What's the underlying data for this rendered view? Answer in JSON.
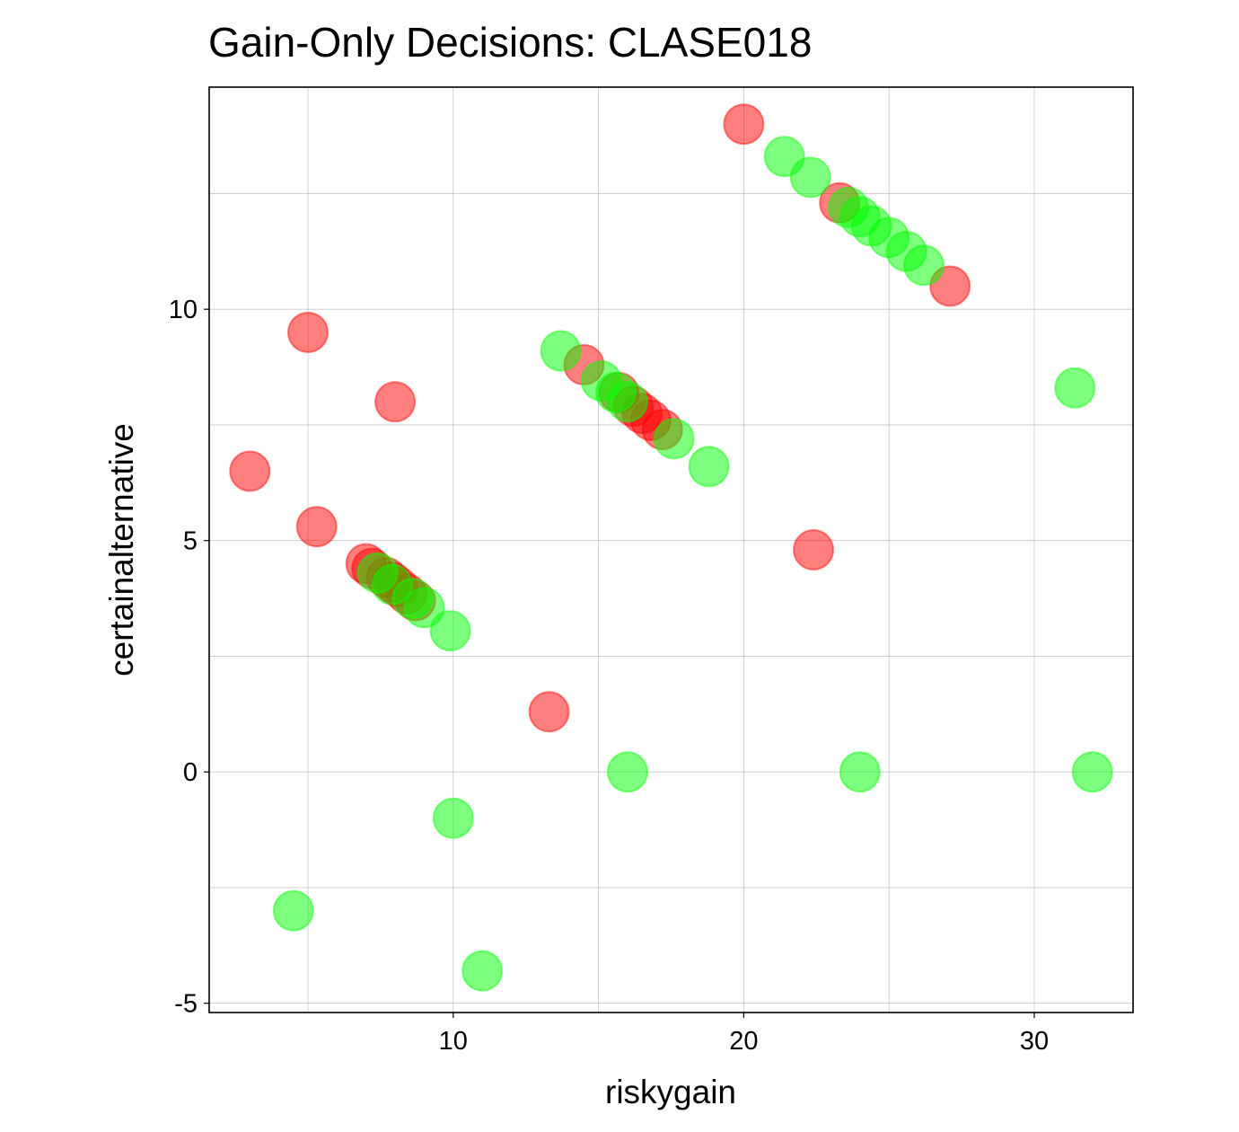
{
  "chart_data": {
    "type": "scatter",
    "title": "Gain-Only Decisions: CLASE018",
    "xlabel": "riskygain",
    "ylabel": "certainalternative",
    "xlim": [
      1.6,
      33.4
    ],
    "ylim": [
      -5.2,
      14.8
    ],
    "x_ticks": [
      10,
      20,
      30
    ],
    "x_tick_labels": [
      "10",
      "20",
      "30"
    ],
    "y_ticks": [
      -5,
      0,
      5,
      10
    ],
    "y_tick_labels": [
      "-5",
      "0",
      "5",
      "10"
    ],
    "x_minor_grid": [
      5,
      15,
      25
    ],
    "y_minor_grid": [
      -2.5,
      2.5,
      7.5,
      12.5
    ],
    "grid": true,
    "legend": "none",
    "colors": {
      "gamble": "#ff0000",
      "safe": "#00ff00"
    },
    "series": [
      {
        "key": "gamble",
        "color": "#ff0000",
        "points": [
          {
            "x": 3.0,
            "y": 6.5
          },
          {
            "x": 5.0,
            "y": 9.5
          },
          {
            "x": 5.3,
            "y": 5.3
          },
          {
            "x": 7.0,
            "y": 4.5
          },
          {
            "x": 7.2,
            "y": 4.4
          },
          {
            "x": 7.7,
            "y": 4.2
          },
          {
            "x": 7.9,
            "y": 4.1
          },
          {
            "x": 8.1,
            "y": 4.0
          },
          {
            "x": 8.4,
            "y": 3.85
          },
          {
            "x": 8.7,
            "y": 3.7
          },
          {
            "x": 8.0,
            "y": 8.0
          },
          {
            "x": 13.3,
            "y": 1.3
          },
          {
            "x": 14.5,
            "y": 8.8
          },
          {
            "x": 15.7,
            "y": 8.2
          },
          {
            "x": 16.2,
            "y": 7.9
          },
          {
            "x": 16.5,
            "y": 7.75
          },
          {
            "x": 16.8,
            "y": 7.6
          },
          {
            "x": 17.2,
            "y": 7.4
          },
          {
            "x": 20.0,
            "y": 14.0
          },
          {
            "x": 22.4,
            "y": 4.8
          },
          {
            "x": 23.3,
            "y": 12.3
          },
          {
            "x": 27.1,
            "y": 10.5
          }
        ]
      },
      {
        "key": "safe",
        "color": "#00ff00",
        "points": [
          {
            "x": 4.5,
            "y": -3.0
          },
          {
            "x": 7.4,
            "y": 4.3
          },
          {
            "x": 7.9,
            "y": 4.05
          },
          {
            "x": 8.6,
            "y": 3.75
          },
          {
            "x": 9.0,
            "y": 3.55
          },
          {
            "x": 9.9,
            "y": 3.05
          },
          {
            "x": 10.0,
            "y": -1.0
          },
          {
            "x": 11.0,
            "y": -4.3
          },
          {
            "x": 13.7,
            "y": 9.1
          },
          {
            "x": 15.1,
            "y": 8.45
          },
          {
            "x": 15.6,
            "y": 8.2
          },
          {
            "x": 16.0,
            "y": 8.0
          },
          {
            "x": 16.0,
            "y": 0.0
          },
          {
            "x": 17.6,
            "y": 7.2
          },
          {
            "x": 18.8,
            "y": 6.6
          },
          {
            "x": 21.4,
            "y": 13.3
          },
          {
            "x": 22.3,
            "y": 12.85
          },
          {
            "x": 23.6,
            "y": 12.2
          },
          {
            "x": 24.0,
            "y": 12.0
          },
          {
            "x": 24.4,
            "y": 11.8
          },
          {
            "x": 25.0,
            "y": 11.55
          },
          {
            "x": 25.6,
            "y": 11.25
          },
          {
            "x": 26.2,
            "y": 10.95
          },
          {
            "x": 24.0,
            "y": 0.0
          },
          {
            "x": 31.4,
            "y": 8.3
          },
          {
            "x": 32.0,
            "y": 0.0
          }
        ]
      }
    ]
  }
}
